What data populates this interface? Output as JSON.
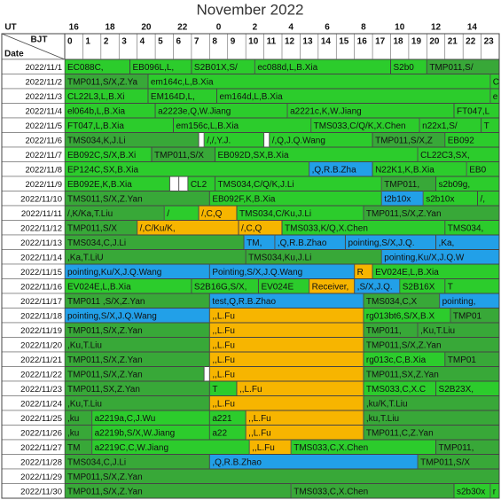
{
  "title": "November 2022",
  "header": {
    "ut": "UT",
    "bjt": "BJT",
    "date": "Date",
    "ut_hours": [
      16,
      18,
      20,
      22,
      0,
      2,
      4,
      6,
      8,
      10,
      12,
      14
    ],
    "bjt_hours": [
      0,
      1,
      2,
      3,
      4,
      5,
      6,
      7,
      8,
      9,
      10,
      11,
      12,
      13,
      14,
      15,
      16,
      17,
      18,
      19,
      20,
      21,
      22,
      23
    ]
  },
  "rows": [
    {
      "date": "2022/11/1",
      "blocks": [
        {
          "start": 0,
          "end": 3.6,
          "label": "EC088C,",
          "color": "#2ccc2c"
        },
        {
          "start": 3.6,
          "end": 7,
          "label": "EB096L,L,",
          "color": "#2ccc2c"
        },
        {
          "start": 7,
          "end": 10.5,
          "label": "S2B01X,S/",
          "color": "#2ccc2c"
        },
        {
          "start": 10.5,
          "end": 18,
          "label": "ec088d,L,B.Xia",
          "color": "#2ccc2c"
        },
        {
          "start": 18,
          "end": 20,
          "label": "S2b0",
          "color": "#2ccc2c"
        },
        {
          "start": 20,
          "end": 24,
          "label": "TMP011,S/",
          "color": "#38a838"
        }
      ]
    },
    {
      "date": "2022/11/2",
      "blocks": [
        {
          "start": 0,
          "end": 4.6,
          "label": "TMP011,S/X,Z.Ya",
          "color": "#38a838"
        },
        {
          "start": 4.6,
          "end": 23.5,
          "label": "em164c,L,B.Xia",
          "color": "#2ccc2c"
        },
        {
          "start": 23.5,
          "end": 24,
          "label": "C",
          "color": "#2ccc2c"
        }
      ]
    },
    {
      "date": "2022/11/3",
      "blocks": [
        {
          "start": 0,
          "end": 4.6,
          "label": "CL22L3,L,B.Xi",
          "color": "#2ccc2c"
        },
        {
          "start": 4.6,
          "end": 8.4,
          "label": "EM164D,L,",
          "color": "#2ccc2c"
        },
        {
          "start": 8.4,
          "end": 23.5,
          "label": "em164d,L,B.Xia",
          "color": "#2ccc2c"
        },
        {
          "start": 23.5,
          "end": 24,
          "label": "e",
          "color": "#2ccc2c"
        }
      ]
    },
    {
      "date": "2022/11/4",
      "blocks": [
        {
          "start": 0,
          "end": 5,
          "label": "el064b,L,B.Xia",
          "color": "#2ccc2c"
        },
        {
          "start": 5,
          "end": 12.3,
          "label": "a2223e,Q,W.Jiang",
          "color": "#2ccc2c"
        },
        {
          "start": 12.3,
          "end": 21.5,
          "label": "a2221c,K,W.Jiang",
          "color": "#2ccc2c"
        },
        {
          "start": 21.5,
          "end": 24,
          "label": "FT047,L",
          "color": "#2ccc2c"
        }
      ]
    },
    {
      "date": "2022/11/5",
      "blocks": [
        {
          "start": 0,
          "end": 6,
          "label": "FT047,L,B.Xia",
          "color": "#2ccc2c"
        },
        {
          "start": 6,
          "end": 13.6,
          "label": "em156c,L,B.Xia",
          "color": "#2ccc2c"
        },
        {
          "start": 13.6,
          "end": 19.6,
          "label": "TMS033,C/Q/K,X.Chen",
          "color": "#2ccc2c"
        },
        {
          "start": 19.6,
          "end": 23,
          "label": "n22x1,S/",
          "color": "#2ccc2c"
        },
        {
          "start": 23,
          "end": 24,
          "label": "T",
          "color": "#2ccc2c"
        }
      ]
    },
    {
      "date": "2022/11/6",
      "blocks": [
        {
          "start": 0,
          "end": 7.4,
          "label": "TMS034,K,J.Li",
          "color": "#38a838"
        },
        {
          "start": 7.4,
          "end": 7.7,
          "color": "#ffffff"
        },
        {
          "start": 7.7,
          "end": 11,
          "label": "/,/,Y.J.",
          "color": "#2ccc2c"
        },
        {
          "start": 11,
          "end": 11.3,
          "color": "#ffffff"
        },
        {
          "start": 11.3,
          "end": 17,
          "label": "/,Q,J.Q.Wang",
          "color": "#2ccc2c"
        },
        {
          "start": 17,
          "end": 21,
          "label": "TMP011,S/X,Z",
          "color": "#38a838"
        },
        {
          "start": 21,
          "end": 24,
          "label": "EB092",
          "color": "#2ccc2c"
        }
      ]
    },
    {
      "date": "2022/11/7",
      "blocks": [
        {
          "start": 0,
          "end": 4.8,
          "label": "EB092C,S/X,B.Xi",
          "color": "#2ccc2c"
        },
        {
          "start": 4.8,
          "end": 8.3,
          "label": "TMP011,S/X",
          "color": "#38a838"
        },
        {
          "start": 8.3,
          "end": 19.5,
          "label": "EB092D,SX,B.Xia",
          "color": "#2ccc2c"
        },
        {
          "start": 19.5,
          "end": 24,
          "label": "CL22C3,SX,",
          "color": "#2ccc2c"
        }
      ]
    },
    {
      "date": "2022/11/8",
      "blocks": [
        {
          "start": 0,
          "end": 13.5,
          "label": "EP124C,SX,B.Xia",
          "color": "#2ccc2c"
        },
        {
          "start": 13.5,
          "end": 17,
          "label": ",Q,R.B.Zha",
          "color": "#22a0e8"
        },
        {
          "start": 17,
          "end": 22.2,
          "label": "N22K1,K,B.Xia",
          "color": "#2ccc2c"
        },
        {
          "start": 22.2,
          "end": 24,
          "label": "EB0",
          "color": "#2ccc2c"
        }
      ]
    },
    {
      "date": "2022/11/9",
      "blocks": [
        {
          "start": 0,
          "end": 5.8,
          "label": "EB092E,K,B.Xia",
          "color": "#2ccc2c"
        },
        {
          "start": 5.8,
          "end": 6.3,
          "color": "#ffffff"
        },
        {
          "start": 6.3,
          "end": 6.8,
          "color": "#ffffff"
        },
        {
          "start": 6.8,
          "end": 8.3,
          "label": "CL2",
          "color": "#2ccc2c"
        },
        {
          "start": 8.3,
          "end": 17.5,
          "label": "TMS034,C/Q/K,J.Li",
          "color": "#2ccc2c"
        },
        {
          "start": 17.5,
          "end": 20.5,
          "label": "TMP011,",
          "color": "#38a838"
        },
        {
          "start": 20.5,
          "end": 24,
          "label": "s2b09g,",
          "color": "#2ccc2c"
        }
      ]
    },
    {
      "date": "2022/11/10",
      "blocks": [
        {
          "start": 0,
          "end": 8,
          "label": "TMS011,S/X,Z.Yan",
          "color": "#38a838"
        },
        {
          "start": 8,
          "end": 17.5,
          "label": "EB092F,K,B.Xia",
          "color": "#2ccc2c"
        },
        {
          "start": 17.5,
          "end": 19.8,
          "label": "t2b10x",
          "color": "#22a0e8"
        },
        {
          "start": 19.8,
          "end": 22.8,
          "label": "s2b10x",
          "color": "#2ccc2c"
        },
        {
          "start": 22.8,
          "end": 24,
          "label": "/,",
          "color": "#2ccc2c"
        }
      ]
    },
    {
      "date": "2022/11/11",
      "blocks": [
        {
          "start": 0,
          "end": 5.5,
          "label": "/,K/Ka,T.Liu",
          "color": "#38a838"
        },
        {
          "start": 5.5,
          "end": 7.4,
          "label": "/",
          "color": "#2ccc2c"
        },
        {
          "start": 7.4,
          "end": 9.5,
          "label": "/,C,Q",
          "color": "#f7b500"
        },
        {
          "start": 9.5,
          "end": 16.5,
          "label": "TMS034,C/Ku,J.Li",
          "color": "#2ccc2c"
        },
        {
          "start": 16.5,
          "end": 24,
          "label": "TMP011,S/X,Z.Yan",
          "color": "#38a838"
        }
      ]
    },
    {
      "date": "2022/11/12",
      "blocks": [
        {
          "start": 0,
          "end": 4,
          "label": "TMP011,S/X",
          "color": "#38a838"
        },
        {
          "start": 4,
          "end": 9.6,
          "label": "/,C/Ku/K,",
          "color": "#f7b500"
        },
        {
          "start": 9.6,
          "end": 12,
          "label": "/,C,Q",
          "color": "#f7b500"
        },
        {
          "start": 12,
          "end": 21,
          "label": "TMS033,K/Q,X.Chen",
          "color": "#2ccc2c"
        },
        {
          "start": 21,
          "end": 24,
          "label": "TMS034,",
          "color": "#2ccc2c"
        }
      ]
    },
    {
      "date": "2022/11/13",
      "blocks": [
        {
          "start": 0,
          "end": 9.9,
          "label": "TMS034,C,J.Li",
          "color": "#38a838"
        },
        {
          "start": 9.9,
          "end": 11.6,
          "label": "TM,",
          "color": "#22a0e8"
        },
        {
          "start": 11.6,
          "end": 15.5,
          "label": ",Q,R.B.Zhao",
          "color": "#22a0e8"
        },
        {
          "start": 15.5,
          "end": 20.5,
          "label": "pointing,S/X,J.Q.",
          "color": "#22a0e8"
        },
        {
          "start": 20.5,
          "end": 24,
          "label": ",Ka,",
          "color": "#22a0e8"
        }
      ]
    },
    {
      "date": "2022/11/14",
      "blocks": [
        {
          "start": 0,
          "end": 10,
          "label": ",Ka,T.LiU",
          "color": "#38a838"
        },
        {
          "start": 10,
          "end": 17.5,
          "label": "TMS034,Ku,J.Li",
          "color": "#38a838"
        },
        {
          "start": 17.5,
          "end": 24,
          "label": "pointing,Ku/X,J.Q.W",
          "color": "#22a0e8"
        }
      ]
    },
    {
      "date": "2022/11/15",
      "blocks": [
        {
          "start": 0,
          "end": 8,
          "label": "pointing,Ku/X,J.Q.Wang",
          "color": "#22a0e8"
        },
        {
          "start": 8,
          "end": 16,
          "label": "Pointing,S/X,J.Q.Wang",
          "color": "#22a0e8"
        },
        {
          "start": 16,
          "end": 17,
          "label": "R",
          "color": "#f7b500"
        },
        {
          "start": 17,
          "end": 24,
          "label": "EV024E,L,B.Xia",
          "color": "#2ccc2c"
        }
      ]
    },
    {
      "date": "2022/11/16",
      "blocks": [
        {
          "start": 0,
          "end": 7,
          "label": "EV024E,L,B.Xia",
          "color": "#2ccc2c"
        },
        {
          "start": 7,
          "end": 10.7,
          "label": "S2B16G,S/X,",
          "color": "#2ccc2c"
        },
        {
          "start": 10.7,
          "end": 13.5,
          "label": "EV024E",
          "color": "#2ccc2c"
        },
        {
          "start": 13.5,
          "end": 16,
          "label": "Receiver,",
          "color": "#f7b500"
        },
        {
          "start": 16,
          "end": 18.5,
          "label": ",S/X,J.Q.",
          "color": "#22a0e8"
        },
        {
          "start": 18.5,
          "end": 21,
          "label": "S2B16X",
          "color": "#2ccc2c"
        },
        {
          "start": 21,
          "end": 24,
          "label": "T",
          "color": "#2ccc2c"
        }
      ]
    },
    {
      "date": "2022/11/17",
      "blocks": [
        {
          "start": 0,
          "end": 8,
          "label": "TMP011 ,S/X,Z.Yan",
          "color": "#38a838"
        },
        {
          "start": 8,
          "end": 16.5,
          "label": "test,Q,R.B.Zhao",
          "color": "#22a0e8"
        },
        {
          "start": 16.5,
          "end": 20.7,
          "label": "TMS034,C,X",
          "color": "#38a838"
        },
        {
          "start": 20.7,
          "end": 24,
          "label": "pointing,",
          "color": "#22a0e8"
        }
      ]
    },
    {
      "date": "2022/11/18",
      "blocks": [
        {
          "start": 0,
          "end": 8,
          "label": "pointing,S/X,J.Q.Wang",
          "color": "#22a0e8"
        },
        {
          "start": 8,
          "end": 16.5,
          "label": ",,L.Fu",
          "color": "#f7b500"
        },
        {
          "start": 16.5,
          "end": 21.3,
          "label": "rg013bt6,S/X,B.X",
          "color": "#2ccc2c"
        },
        {
          "start": 21.3,
          "end": 24,
          "label": "TMP01",
          "color": "#38a838"
        }
      ]
    },
    {
      "date": "2022/11/19",
      "blocks": [
        {
          "start": 0,
          "end": 8,
          "label": "TMP011,S/X,Z.Yan",
          "color": "#38a838"
        },
        {
          "start": 8,
          "end": 16.5,
          "label": ",,L.Fu",
          "color": "#f7b500"
        },
        {
          "start": 16.5,
          "end": 19.5,
          "label": "TMP011,",
          "color": "#38a838"
        },
        {
          "start": 19.5,
          "end": 24,
          "label": ",Ku,T.Liu",
          "color": "#38a838"
        }
      ]
    },
    {
      "date": "2022/11/20",
      "blocks": [
        {
          "start": 0,
          "end": 8,
          "label": ",Ku,T.Liu",
          "color": "#38a838"
        },
        {
          "start": 8,
          "end": 16.5,
          "label": ",,L.Fu",
          "color": "#f7b500"
        },
        {
          "start": 16.5,
          "end": 24,
          "label": "TMP011,S/X,Z.Yan",
          "color": "#38a838"
        }
      ]
    },
    {
      "date": "2022/11/21",
      "blocks": [
        {
          "start": 0,
          "end": 8,
          "label": "TMP011,S/X,Z.Yan",
          "color": "#38a838"
        },
        {
          "start": 8,
          "end": 16.5,
          "label": ",,L.Fu",
          "color": "#f7b500"
        },
        {
          "start": 16.5,
          "end": 21,
          "label": "rg013c,C,B.Xia",
          "color": "#2ccc2c"
        },
        {
          "start": 21,
          "end": 24,
          "label": "TMP01",
          "color": "#38a838"
        }
      ]
    },
    {
      "date": "2022/11/22",
      "blocks": [
        {
          "start": 0,
          "end": 7.7,
          "label": "TMP011,S/X,Z.Yan",
          "color": "#38a838"
        },
        {
          "start": 7.7,
          "end": 8,
          "color": "#ffffff"
        },
        {
          "start": 8,
          "end": 16.5,
          "label": ",,L.Fu",
          "color": "#f7b500"
        },
        {
          "start": 16.5,
          "end": 24,
          "label": "TMP011,SX,Z.Yan",
          "color": "#38a838"
        }
      ]
    },
    {
      "date": "2022/11/23",
      "blocks": [
        {
          "start": 0,
          "end": 8,
          "label": "TMP011,SX,Z.Yan",
          "color": "#38a838"
        },
        {
          "start": 8,
          "end": 9.5,
          "label": "T",
          "color": "#2ccc2c"
        },
        {
          "start": 9.5,
          "end": 16.5,
          "label": ",,L.Fu",
          "color": "#f7b500"
        },
        {
          "start": 16.5,
          "end": 20.5,
          "label": "TMS033,C,X.C",
          "color": "#2ccc2c"
        },
        {
          "start": 20.5,
          "end": 24,
          "label": "S2B23X,",
          "color": "#2ccc2c"
        }
      ]
    },
    {
      "date": "2022/11/24",
      "blocks": [
        {
          "start": 0,
          "end": 8,
          "label": ",Ku,T.Liu",
          "color": "#38a838"
        },
        {
          "start": 8,
          "end": 16.5,
          "label": ",,L.Fu",
          "color": "#f7b500"
        },
        {
          "start": 16.5,
          "end": 24,
          "label": ",ku/K,T.Liu",
          "color": "#38a838"
        }
      ]
    },
    {
      "date": "2022/11/25",
      "blocks": [
        {
          "start": 0,
          "end": 1.5,
          "label": ",ku",
          "color": "#38a838"
        },
        {
          "start": 1.5,
          "end": 8,
          "label": "a2219a,C,J.Wu",
          "color": "#2ccc2c"
        },
        {
          "start": 8,
          "end": 10,
          "label": "a221",
          "color": "#2ccc2c"
        },
        {
          "start": 10,
          "end": 16.5,
          "label": ",,L.Fu",
          "color": "#f7b500"
        },
        {
          "start": 16.5,
          "end": 24,
          "label": ",ku,T.Liu",
          "color": "#38a838"
        }
      ]
    },
    {
      "date": "2022/11/26",
      "blocks": [
        {
          "start": 0,
          "end": 1.5,
          "label": ",ku",
          "color": "#38a838"
        },
        {
          "start": 1.5,
          "end": 8,
          "label": "a2219b,S/X,W.Jiang",
          "color": "#2ccc2c"
        },
        {
          "start": 8,
          "end": 10,
          "label": "a22",
          "color": "#2ccc2c"
        },
        {
          "start": 10,
          "end": 16.5,
          "label": ",,L.Fu",
          "color": "#f7b500"
        },
        {
          "start": 16.5,
          "end": 24,
          "label": "TMP011,C,Z.Yan",
          "color": "#38a838"
        }
      ]
    },
    {
      "date": "2022/11/27",
      "blocks": [
        {
          "start": 0,
          "end": 1.5,
          "label": "TM",
          "color": "#38a838"
        },
        {
          "start": 1.5,
          "end": 10.2,
          "label": "a2219C,C,W.Jiang",
          "color": "#2ccc2c"
        },
        {
          "start": 10.2,
          "end": 12.5,
          "label": ",,L.Fu",
          "color": "#f7b500"
        },
        {
          "start": 12.5,
          "end": 20.5,
          "label": "TMS033,C,X.Chen",
          "color": "#2ccc2c"
        },
        {
          "start": 20.5,
          "end": 24,
          "label": "TMP011,",
          "color": "#38a838"
        }
      ]
    },
    {
      "date": "2022/11/28",
      "blocks": [
        {
          "start": 0,
          "end": 8,
          "label": "TMS034,C,J.Li",
          "color": "#38a838"
        },
        {
          "start": 8,
          "end": 19.5,
          "label": ",Q,R.B.Zhao",
          "color": "#22a0e8"
        },
        {
          "start": 19.5,
          "end": 24,
          "label": "TMP011,S/X",
          "color": "#38a838"
        }
      ]
    },
    {
      "date": "2022/11/29",
      "blocks": [
        {
          "start": 0,
          "end": 24,
          "label": "TMP011,S/X,Z.Yan",
          "color": "#38a838"
        }
      ]
    },
    {
      "date": "2022/11/30",
      "blocks": [
        {
          "start": 0,
          "end": 12.5,
          "label": "TMP011,S/X,Z.Yan",
          "color": "#38a838"
        },
        {
          "start": 12.5,
          "end": 21.5,
          "label": "TMS033,C,X.Chen",
          "color": "#38a838"
        },
        {
          "start": 21.5,
          "end": 23.5,
          "label": "s2b30x",
          "color": "#2ccc2c"
        },
        {
          "start": 23.5,
          "end": 24,
          "label": "r",
          "color": "#2ccc2c"
        }
      ]
    }
  ]
}
